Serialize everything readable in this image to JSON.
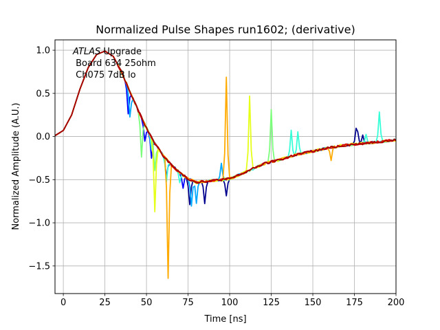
{
  "chart_data": {
    "type": "line",
    "title": "Normalized Pulse Shapes run1602; (derivative)",
    "xlabel": "Time [ns]",
    "ylabel": "Normalized Amplitude (A.U.)",
    "xlim": [
      -5,
      200
    ],
    "ylim": [
      -1.82,
      1.12
    ],
    "xticks": [
      0,
      25,
      50,
      75,
      100,
      125,
      150,
      175,
      200
    ],
    "yticks": [
      -1.5,
      -1.0,
      -0.5,
      0.0,
      0.5,
      1.0
    ],
    "xtick_labels": [
      "0",
      "25",
      "50",
      "75",
      "100",
      "125",
      "150",
      "175",
      "200"
    ],
    "ytick_labels": [
      "−1.5",
      "−1.0",
      "−0.5",
      "0.0",
      "0.5",
      "1.0"
    ],
    "grid": true,
    "annotation": {
      "line1_italic": "ATLAS",
      "line1_rest": " Upgrade",
      "line2": " Board 634 25ohm",
      "line3": " Ch075 7dB lo"
    },
    "base_curve": {
      "x": [
        -5,
        0,
        5,
        10,
        15,
        20,
        25,
        30,
        35,
        40,
        45,
        50,
        55,
        60,
        65,
        70,
        75,
        80,
        85,
        90,
        100,
        110,
        120,
        130,
        140,
        150,
        160,
        170,
        180,
        190,
        200
      ],
      "y": [
        0.01,
        0.07,
        0.25,
        0.55,
        0.8,
        0.95,
        0.99,
        0.93,
        0.75,
        0.52,
        0.3,
        0.1,
        -0.08,
        -0.22,
        -0.33,
        -0.42,
        -0.49,
        -0.53,
        -0.52,
        -0.51,
        -0.49,
        -0.41,
        -0.32,
        -0.27,
        -0.21,
        -0.17,
        -0.13,
        -0.1,
        -0.08,
        -0.06,
        -0.04
      ]
    },
    "series": [
      {
        "name": "ch_navy",
        "color": "#00008f",
        "noise": 0.01,
        "spikes": [
          [
            76,
            -0.3
          ],
          [
            85,
            -0.25
          ],
          [
            98,
            -0.2
          ],
          [
            176,
            0.15
          ],
          [
            177,
            0.1
          ],
          [
            180,
            0.1
          ]
        ]
      },
      {
        "name": "ch_blue",
        "color": "#0000ff",
        "noise": 0.012,
        "spikes": [
          [
            39,
            -0.3
          ],
          [
            49,
            -0.2
          ],
          [
            53,
            -0.25
          ],
          [
            62,
            -0.2
          ],
          [
            72,
            -0.15
          ]
        ]
      },
      {
        "name": "ch_lightblue",
        "color": "#00a9ff",
        "noise": 0.01,
        "spikes": [
          [
            40,
            -0.3
          ],
          [
            77,
            -0.3
          ],
          [
            80,
            -0.25
          ],
          [
            95,
            0.2
          ]
        ]
      },
      {
        "name": "ch_cyan",
        "color": "#36ffd7",
        "noise": 0.01,
        "spikes": [
          [
            53,
            -0.15
          ],
          [
            62,
            -0.25
          ],
          [
            70,
            -0.12
          ],
          [
            137,
            0.3
          ],
          [
            141,
            0.25
          ],
          [
            182,
            0.1
          ],
          [
            190,
            0.35
          ]
        ]
      },
      {
        "name": "ch_green",
        "color": "#7bff7b",
        "noise": 0.01,
        "spikes": [
          [
            47,
            -0.45
          ],
          [
            55,
            -0.3
          ],
          [
            125,
            0.6
          ]
        ]
      },
      {
        "name": "ch_yellow",
        "color": "#e6ff18",
        "noise": 0.01,
        "spikes": [
          [
            55,
            -0.8
          ],
          [
            112,
            0.85
          ]
        ]
      },
      {
        "name": "ch_orange",
        "color": "#ffaa00",
        "noise": 0.008,
        "spikes": [
          [
            63,
            -1.35
          ],
          [
            98,
            1.18
          ],
          [
            161,
            -0.15
          ]
        ]
      },
      {
        "name": "ch_red",
        "color": "#e10000",
        "noise": 0.008,
        "spikes": [
          [
            127,
            0.02
          ]
        ]
      },
      {
        "name": "ch_darkred",
        "color": "#a40000",
        "noise": 0.008,
        "spikes": []
      }
    ]
  }
}
